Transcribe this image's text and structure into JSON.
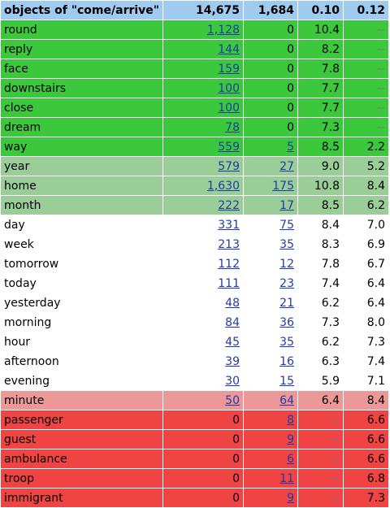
{
  "header": {
    "col0": "objects of \"come/arrive\"",
    "col1": "14,675",
    "col2": "1,684",
    "col3": "0.10",
    "col4": "0.12"
  },
  "colors": {
    "header_bg": "#9ecbef",
    "group_bright_green": "#3cc83c",
    "group_light_green": "#9acd98",
    "group_white": "#ffffff",
    "group_pink": "#ec9898",
    "group_red": "#f04444"
  },
  "rows": [
    {
      "word": "round",
      "c1": "1,128",
      "c1_link": true,
      "c2": "0",
      "c2_link": false,
      "c3": "10.4",
      "c4": "--",
      "bg": "#3cc83c"
    },
    {
      "word": "reply",
      "c1": "144",
      "c1_link": true,
      "c2": "0",
      "c2_link": false,
      "c3": "8.2",
      "c4": "--",
      "bg": "#3cc83c"
    },
    {
      "word": "face",
      "c1": "159",
      "c1_link": true,
      "c2": "0",
      "c2_link": false,
      "c3": "7.8",
      "c4": "--",
      "bg": "#3cc83c"
    },
    {
      "word": "downstairs",
      "c1": "100",
      "c1_link": true,
      "c2": "0",
      "c2_link": false,
      "c3": "7.7",
      "c4": "--",
      "bg": "#3cc83c"
    },
    {
      "word": "close",
      "c1": "100",
      "c1_link": true,
      "c2": "0",
      "c2_link": false,
      "c3": "7.7",
      "c4": "--",
      "bg": "#3cc83c"
    },
    {
      "word": "dream",
      "c1": "78",
      "c1_link": true,
      "c2": "0",
      "c2_link": false,
      "c3": "7.3",
      "c4": "--",
      "bg": "#3cc83c"
    },
    {
      "word": "way",
      "c1": "559",
      "c1_link": true,
      "c2": "5",
      "c2_link": true,
      "c3": "8.5",
      "c4": "2.2",
      "bg": "#3cc83c"
    },
    {
      "word": "year",
      "c1": "579",
      "c1_link": true,
      "c2": "27",
      "c2_link": true,
      "c3": "9.0",
      "c4": "5.2",
      "bg": "#9acd98"
    },
    {
      "word": "home",
      "c1": "1,630",
      "c1_link": true,
      "c2": "175",
      "c2_link": true,
      "c3": "10.8",
      "c4": "8.4",
      "bg": "#9acd98"
    },
    {
      "word": "month",
      "c1": "222",
      "c1_link": true,
      "c2": "17",
      "c2_link": true,
      "c3": "8.5",
      "c4": "6.2",
      "bg": "#9acd98"
    },
    {
      "word": "day",
      "c1": "331",
      "c1_link": true,
      "c2": "75",
      "c2_link": true,
      "c3": "8.4",
      "c4": "7.0",
      "bg": "#ffffff"
    },
    {
      "word": "week",
      "c1": "213",
      "c1_link": true,
      "c2": "35",
      "c2_link": true,
      "c3": "8.3",
      "c4": "6.9",
      "bg": "#ffffff"
    },
    {
      "word": "tomorrow",
      "c1": "112",
      "c1_link": true,
      "c2": "12",
      "c2_link": true,
      "c3": "7.8",
      "c4": "6.7",
      "bg": "#ffffff"
    },
    {
      "word": "today",
      "c1": "111",
      "c1_link": true,
      "c2": "23",
      "c2_link": true,
      "c3": "7.4",
      "c4": "6.4",
      "bg": "#ffffff"
    },
    {
      "word": "yesterday",
      "c1": "48",
      "c1_link": true,
      "c2": "21",
      "c2_link": true,
      "c3": "6.2",
      "c4": "6.4",
      "bg": "#ffffff"
    },
    {
      "word": "morning",
      "c1": "84",
      "c1_link": true,
      "c2": "36",
      "c2_link": true,
      "c3": "7.3",
      "c4": "8.0",
      "bg": "#ffffff"
    },
    {
      "word": "hour",
      "c1": "45",
      "c1_link": true,
      "c2": "35",
      "c2_link": true,
      "c3": "6.2",
      "c4": "7.3",
      "bg": "#ffffff"
    },
    {
      "word": "afternoon",
      "c1": "39",
      "c1_link": true,
      "c2": "16",
      "c2_link": true,
      "c3": "6.3",
      "c4": "7.4",
      "bg": "#ffffff"
    },
    {
      "word": "evening",
      "c1": "30",
      "c1_link": true,
      "c2": "15",
      "c2_link": true,
      "c3": "5.9",
      "c4": "7.1",
      "bg": "#ffffff"
    },
    {
      "word": "minute",
      "c1": "50",
      "c1_link": true,
      "c2": "64",
      "c2_link": true,
      "c3": "6.4",
      "c4": "8.4",
      "bg": "#ec9898"
    },
    {
      "word": "passenger",
      "c1": "0",
      "c1_link": false,
      "c2": "8",
      "c2_link": true,
      "c3": "--",
      "c4": "6.6",
      "bg": "#f04444"
    },
    {
      "word": "guest",
      "c1": "0",
      "c1_link": false,
      "c2": "9",
      "c2_link": true,
      "c3": "--",
      "c4": "6.6",
      "bg": "#f04444"
    },
    {
      "word": "ambulance",
      "c1": "0",
      "c1_link": false,
      "c2": "6",
      "c2_link": true,
      "c3": "--",
      "c4": "6.6",
      "bg": "#f04444"
    },
    {
      "word": "troop",
      "c1": "0",
      "c1_link": false,
      "c2": "11",
      "c2_link": true,
      "c3": "--",
      "c4": "6.8",
      "bg": "#f04444"
    },
    {
      "word": "immigrant",
      "c1": "0",
      "c1_link": false,
      "c2": "9",
      "c2_link": true,
      "c3": "--",
      "c4": "7.3",
      "bg": "#f04444"
    }
  ]
}
